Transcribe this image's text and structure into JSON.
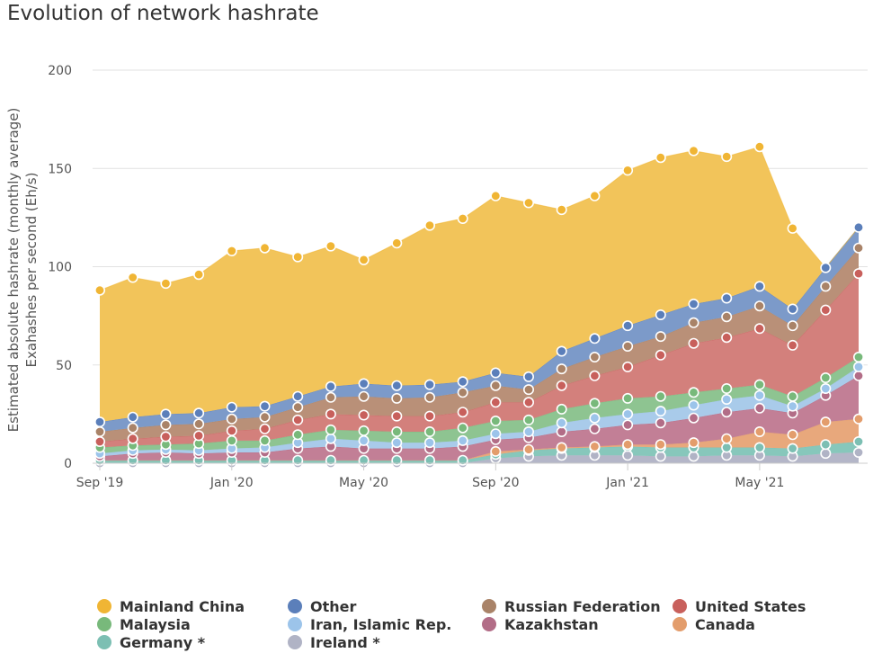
{
  "title": "Evolution of network hashrate",
  "chart_data": {
    "type": "area",
    "stacked": true,
    "title": "Evolution of network hashrate",
    "ylabel": "Estimated absolute hashrate (monthly average) Exahashes per second (Eh/s)",
    "ylabel_lines": [
      "Estimated absolute hashrate (monthly average)",
      "Exahashes per second (Eh/s)"
    ],
    "xlabel": "",
    "ylim": [
      0,
      200
    ],
    "yticks": [
      0,
      50,
      100,
      150,
      200
    ],
    "x": [
      "2019-09",
      "2019-10",
      "2019-11",
      "2019-12",
      "2020-01",
      "2020-02",
      "2020-03",
      "2020-04",
      "2020-05",
      "2020-06",
      "2020-07",
      "2020-08",
      "2020-09",
      "2020-10",
      "2020-11",
      "2020-12",
      "2021-01",
      "2021-02",
      "2021-03",
      "2021-04",
      "2021-05",
      "2021-06",
      "2021-07",
      "2021-08"
    ],
    "xticks": [
      {
        "x": "2019-09",
        "label": "Sep '19"
      },
      {
        "x": "2020-01",
        "label": "Jan '20"
      },
      {
        "x": "2020-05",
        "label": "May '20"
      },
      {
        "x": "2020-09",
        "label": "Sep '20"
      },
      {
        "x": "2021-01",
        "label": "Jan '21"
      },
      {
        "x": "2021-05",
        "label": "May '21"
      }
    ],
    "grid": true,
    "legend_position": "bottom",
    "series": [
      {
        "name": "Ireland *",
        "color": "#b4b6c8",
        "values": [
          0,
          0,
          0,
          0,
          0,
          0,
          0,
          0,
          0,
          0,
          0,
          0,
          2.5,
          3.5,
          4,
          4,
          4,
          3.5,
          3.5,
          4,
          4,
          3.5,
          5,
          5.5
        ]
      },
      {
        "name": "Germany *",
        "color": "#87c7bb",
        "values": [
          1.5,
          1.5,
          1.5,
          1.5,
          1.5,
          1.5,
          1.5,
          1.5,
          1.5,
          1.5,
          1.5,
          1.5,
          2,
          3,
          3.5,
          4,
          4.5,
          4.5,
          4.5,
          4,
          4,
          4,
          4.5,
          5.5
        ]
      },
      {
        "name": "Canada",
        "color": "#e8a87c",
        "values": [
          0,
          0,
          0,
          0,
          0,
          0,
          0,
          0,
          0,
          0,
          0,
          0,
          1.5,
          0.5,
          0.5,
          0.5,
          1,
          1.5,
          2.5,
          4.5,
          8,
          7,
          11.5,
          11.5
        ]
      },
      {
        "name": "Kazakhstan",
        "color": "#c27f96",
        "values": [
          2,
          3.5,
          4,
          3.5,
          4,
          4,
          6,
          7,
          6,
          6,
          6,
          7,
          6,
          6,
          8,
          9,
          10,
          11,
          12.5,
          13.5,
          12,
          11,
          13.5,
          22
        ]
      },
      {
        "name": "Iran, Islamic Rep.",
        "color": "#a9cbea",
        "values": [
          1.5,
          1.5,
          1.5,
          1.5,
          2,
          2.5,
          3,
          4,
          4,
          3,
          3,
          3,
          3,
          3,
          4.5,
          5.5,
          5.5,
          6,
          6.5,
          6.5,
          6.5,
          3.5,
          3.5,
          4.5
        ]
      },
      {
        "name": "Malaysia",
        "color": "#8ec491",
        "values": [
          3,
          2.5,
          2.5,
          3.5,
          4,
          3.5,
          4,
          4.5,
          5,
          5.5,
          5.5,
          6.5,
          6.5,
          6,
          7,
          7.5,
          8,
          7.5,
          6.5,
          5.5,
          5.5,
          5,
          5.5,
          5
        ]
      },
      {
        "name": "United States",
        "color": "#d3807c",
        "values": [
          3,
          3.5,
          4,
          4,
          5,
          6,
          7.5,
          8,
          8,
          8,
          8,
          8,
          9.5,
          9,
          12,
          14,
          16,
          21,
          25,
          26,
          28.5,
          26,
          34.5,
          42.5
        ]
      },
      {
        "name": "Russian Federation",
        "color": "#b99078",
        "values": [
          5,
          5.5,
          6,
          6,
          6,
          6,
          6.5,
          8.5,
          9.5,
          9,
          9.5,
          10,
          8.5,
          6.5,
          8.5,
          9.5,
          10.5,
          9.5,
          10.5,
          10.5,
          11.5,
          10,
          12,
          13
        ]
      },
      {
        "name": "Other",
        "color": "#7c9ac9",
        "values": [
          5,
          5.5,
          5.5,
          5.5,
          6,
          5.5,
          5.5,
          5.5,
          6.5,
          6.5,
          6.5,
          5.5,
          6.5,
          6.5,
          9,
          9.5,
          10.5,
          11,
          9.5,
          9.5,
          10,
          8.5,
          9.5,
          10.5
        ]
      },
      {
        "name": "Mainland China",
        "color": "#f2c45a",
        "values": [
          67,
          71,
          66.5,
          70.5,
          79.5,
          80.5,
          71,
          71.5,
          63,
          72.5,
          81,
          83,
          90,
          88.5,
          72,
          72.5,
          79,
          80,
          78,
          72,
          71,
          41,
          0,
          0
        ]
      }
    ]
  },
  "legend": [
    {
      "label": "Mainland China",
      "color": "#f0b534"
    },
    {
      "label": "Other",
      "color": "#5b7fba"
    },
    {
      "label": "Russian Federation",
      "color": "#a98368"
    },
    {
      "label": "United States",
      "color": "#c8605c"
    },
    {
      "label": "Malaysia",
      "color": "#78b97b"
    },
    {
      "label": "Iran, Islamic Rep.",
      "color": "#9cc4ea"
    },
    {
      "label": "Kazakhstan",
      "color": "#b26d87"
    },
    {
      "label": "Canada",
      "color": "#e39d6c"
    },
    {
      "label": "Germany *",
      "color": "#7cbfb3"
    },
    {
      "label": "Ireland *",
      "color": "#b0b3c5"
    }
  ]
}
